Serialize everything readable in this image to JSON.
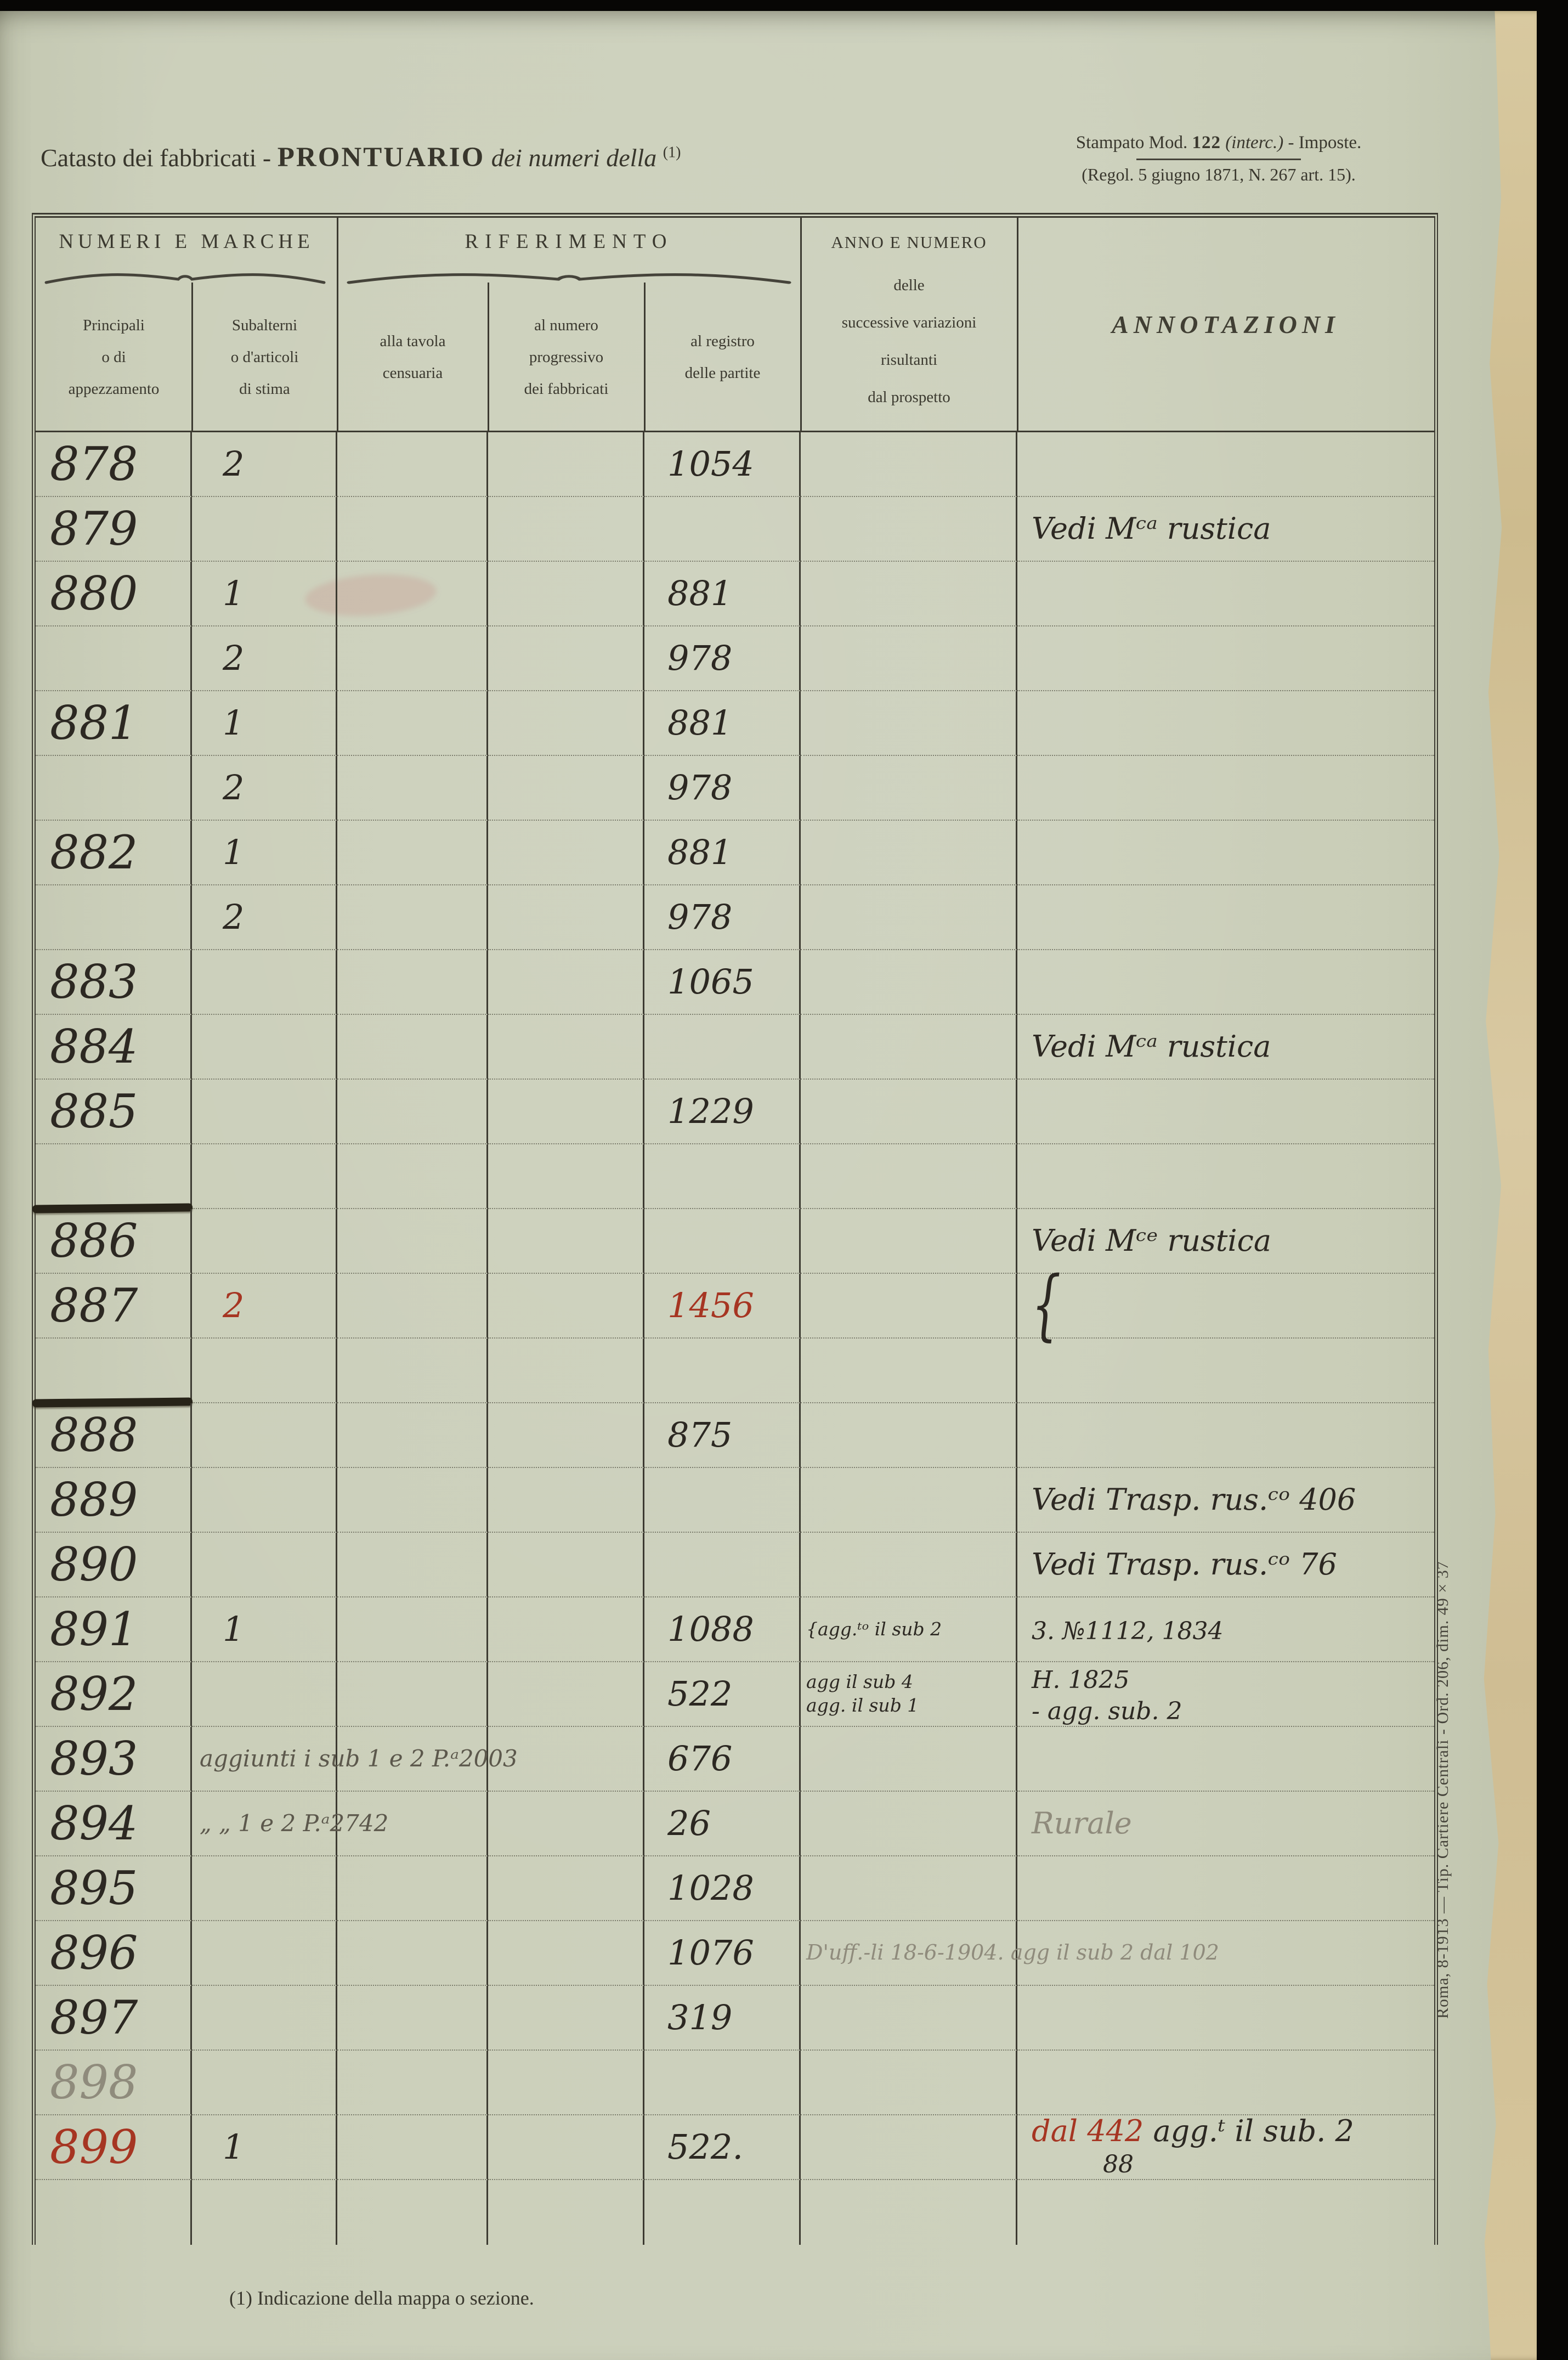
{
  "page": {
    "header": {
      "title_pre": "Catasto dei fabbricati - ",
      "title_main": "PRONTUARIO",
      "title_post": " dei numeri della ",
      "title_ref": "(1)",
      "stamp_line1_a": "Stampato Mod. ",
      "stamp_line1_b": "122",
      "stamp_line1_c": " (interc.)",
      "stamp_line1_d": " - Imposte.",
      "stamp_line2": "(Regol. 5 giugno 1871, N. 267 art. 15)."
    },
    "table": {
      "group_headers": [
        {
          "label": "NUMERI E MARCHE"
        },
        {
          "label": "RIFERIMENTO"
        }
      ],
      "col_headers": [
        "Principali\no di\nappezzamento",
        "Subalterni\no d'articoli\ndi stima",
        "alla tavola\ncensuaria",
        "al numero\nprogressivo\ndei fabbricati",
        "al registro\ndelle partite"
      ],
      "anno_header_title": "ANNO E NUMERO",
      "anno_header_sub": "delle\nsuccessive variazioni\nrisultanti\ndal prospetto",
      "annotazioni_header": "ANNOTAZIONI",
      "rows": [
        {
          "p": "878",
          "sub": "2",
          "reg": "1054"
        },
        {
          "p": "879",
          "note": [
            "Vedi Mᶜᵃ rustica"
          ]
        },
        {
          "p": "880",
          "sub": "1",
          "reg": "881"
        },
        {
          "sub": "2",
          "reg": "978"
        },
        {
          "p": "881",
          "sub": "1",
          "reg": "881"
        },
        {
          "sub": "2",
          "reg": "978"
        },
        {
          "p": "882",
          "sub": "1",
          "reg": "881"
        },
        {
          "sub": "2",
          "reg": "978"
        },
        {
          "p": "883",
          "reg": "1065"
        },
        {
          "p": "884",
          "note": [
            "Vedi Mᶜᵃ rustica"
          ]
        },
        {
          "p": "885",
          "reg": "1229"
        },
        {
          "stroke": true
        },
        {
          "p": "886",
          "note": [
            "Vedi Mᶜᵉ rustica"
          ]
        },
        {
          "p": "887",
          "sub": "2",
          "sub_ink": "red",
          "reg": "1456",
          "reg_ink": "red",
          "note": [
            [
              {
                "t": "{",
                "cls": "brace-glyph"
              }
            ]
          ]
        },
        {
          "stroke": true
        },
        {
          "p": "888",
          "reg": "875"
        },
        {
          "p": "889",
          "note": [
            "Vedi Trasp. rus.ᶜᵒ 406"
          ]
        },
        {
          "p": "890",
          "note": [
            "Vedi Trasp. rus.ᶜᵒ 76"
          ]
        },
        {
          "p": "891",
          "sub": "1",
          "reg": "1088",
          "anno": [
            "{agg.ᵗᵒ il sub 2"
          ],
          "note": [
            [
              {
                "t": "3. №1112, 1834",
                "cls": "mid"
              }
            ]
          ]
        },
        {
          "p": "892",
          "reg": "522",
          "anno": [
            "agg il sub 4",
            "agg. il sub 1"
          ],
          "note": [
            [
              {
                "t": "H. 1825",
                "cls": "mid"
              }
            ],
            [
              {
                "t": "- agg. sub. 2",
                "cls": "mid"
              }
            ]
          ]
        },
        {
          "p": "893",
          "sub": [
            "aggiunti i sub 1 e 2 P.ᵃ2003"
          ],
          "sub_ink": "pencil2",
          "sub_span": true,
          "reg": "676"
        },
        {
          "p": "894",
          "sub": [
            "„    „   1 e 2 P.ᵃ2742"
          ],
          "sub_ink": "pencil2",
          "sub_span": true,
          "reg": "26",
          "note": [
            [
              {
                "t": "Rurale",
                "ink": "pencil"
              }
            ]
          ]
        },
        {
          "p": "895",
          "reg": "1028"
        },
        {
          "p": "896",
          "reg": "1076",
          "anno": [
            "D'uff.-li 18-6-1904. agg il sub 2 dal 102"
          ],
          "anno_ink": "pencil",
          "anno_span": true
        },
        {
          "p": "897",
          "reg": "319"
        },
        {
          "p": "898",
          "p_ink": "pencil"
        },
        {
          "p": "899",
          "p_ink": "red",
          "sub": "1",
          "reg": "522.",
          "note": [
            [
              {
                "t": "dal 442 ",
                "ink": "red"
              },
              {
                "t": "agg.ᵗ il sub. 2"
              }
            ],
            [
              {
                "t": "88",
                "cls": "indent"
              }
            ]
          ]
        },
        {}
      ]
    },
    "footnote": "(1) Indicazione della mappa o sezione.",
    "margin_note": "Roma, 8-1913 — Tip. Cartiere Centrali - Ord. 206, dim. 49 × 37",
    "colors": {
      "paper": "#cbcfba",
      "ink": "#2c2822",
      "red_ink": "#a63522",
      "pencil": "#8f8b7c",
      "line": "#3c3a31",
      "torn_edge": "#d3c197",
      "backdrop": "#070605"
    }
  }
}
